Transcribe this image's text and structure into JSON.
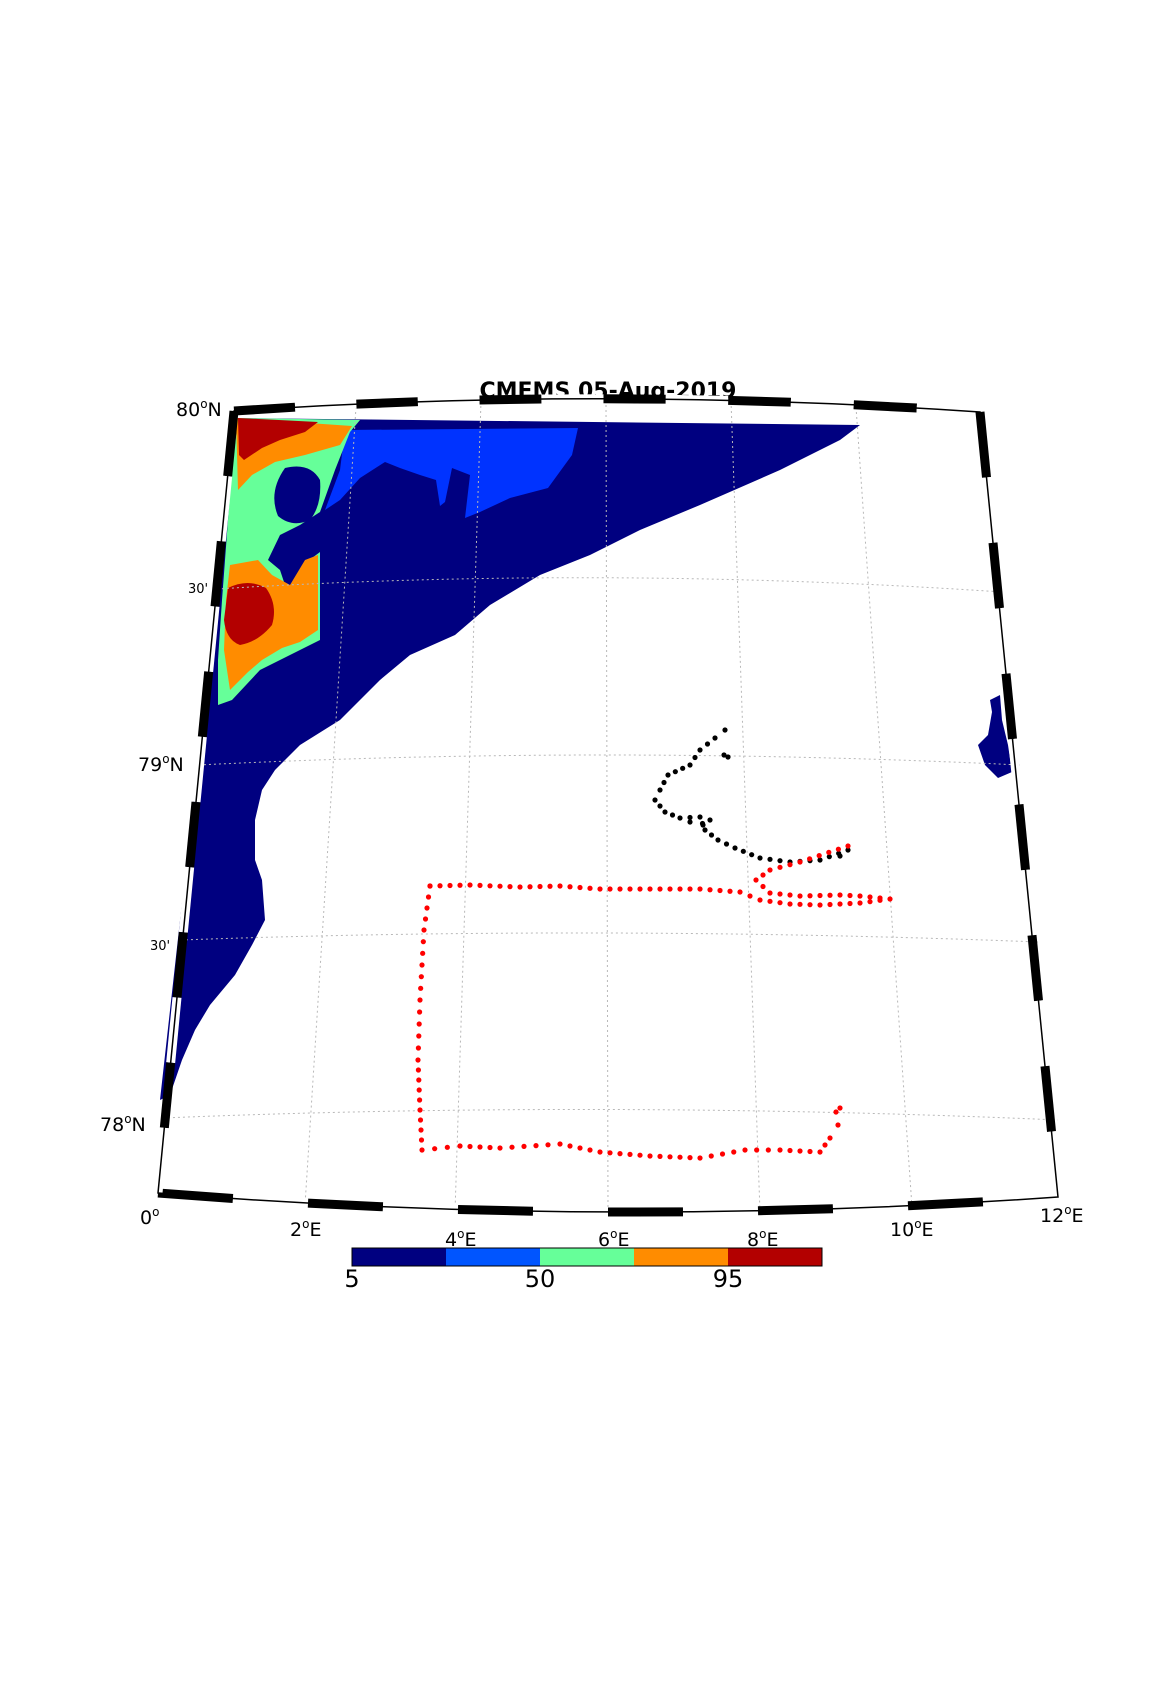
{
  "map": {
    "title": "CMEMS 05-Aug-2019",
    "lat_labels": [
      {
        "text": "80",
        "sup": "o",
        "hemi": "N"
      },
      {
        "text": "30'",
        "sup": "",
        "hemi": ""
      },
      {
        "text": "79",
        "sup": "o",
        "hemi": "N"
      },
      {
        "text": "30'",
        "sup": "",
        "hemi": ""
      },
      {
        "text": "78",
        "sup": "o",
        "hemi": "N"
      }
    ],
    "lon_labels": [
      {
        "text": "0",
        "sup": "o",
        "hemi": ""
      },
      {
        "text": "2",
        "sup": "o",
        "hemi": "E"
      },
      {
        "text": "4",
        "sup": "o",
        "hemi": "E"
      },
      {
        "text": "6",
        "sup": "o",
        "hemi": "E"
      },
      {
        "text": "8",
        "sup": "o",
        "hemi": "E"
      },
      {
        "text": "10",
        "sup": "o",
        "hemi": "E"
      },
      {
        "text": "12",
        "sup": "o",
        "hemi": "E"
      }
    ],
    "lon_range": [
      0,
      12
    ],
    "lat_range": [
      77.8,
      80
    ],
    "grid": true,
    "colorbar": {
      "ticks": [
        "5",
        "50",
        "95"
      ],
      "colors": [
        "#000080",
        "#0055ff",
        "#66ff99",
        "#ff8c00",
        "#b30000"
      ]
    },
    "track_colors": {
      "black_track": "#000000",
      "red_track": "#ff0000"
    }
  }
}
